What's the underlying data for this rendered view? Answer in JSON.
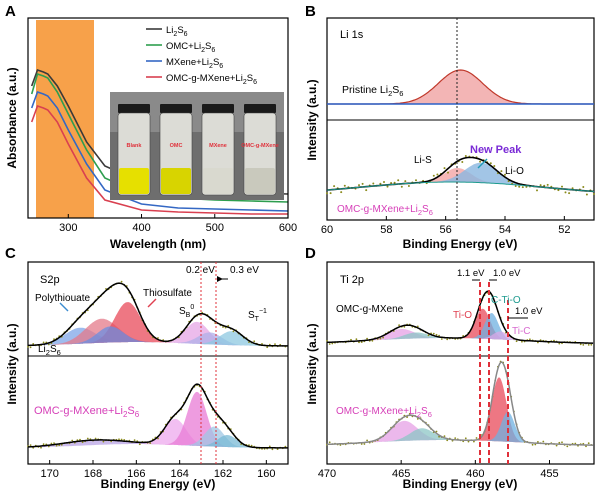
{
  "chart_data": [
    {
      "panel": "A",
      "type": "line",
      "xlabel": "Wavelength (nm)",
      "ylabel": "Absorbance (a.u.)",
      "xticks": [
        "300",
        "400",
        "500",
        "600"
      ],
      "xlim": [
        245,
        600
      ],
      "highlight_band_nm": [
        250,
        325
      ],
      "series": [
        {
          "name": "Li2S6",
          "color": "#3a3a3a",
          "x": [
            250,
            258,
            266,
            272,
            285,
            300,
            325,
            350,
            400,
            450,
            500,
            550,
            600
          ],
          "y": [
            0.66,
            0.74,
            0.73,
            0.72,
            0.66,
            0.56,
            0.38,
            0.26,
            0.18,
            0.15,
            0.135,
            0.125,
            0.12
          ]
        },
        {
          "name": "OMC+Li2S6",
          "color": "#2e9e4f",
          "x": [
            250,
            258,
            266,
            272,
            285,
            300,
            325,
            350,
            400,
            450,
            500,
            550,
            600
          ],
          "y": [
            0.62,
            0.72,
            0.71,
            0.7,
            0.63,
            0.52,
            0.34,
            0.2,
            0.12,
            0.1,
            0.09,
            0.085,
            0.08
          ]
        },
        {
          "name": "MXene+Li2S6",
          "color": "#3468c4",
          "x": [
            250,
            258,
            266,
            272,
            285,
            300,
            325,
            350,
            400,
            450,
            500,
            550,
            600
          ],
          "y": [
            0.55,
            0.63,
            0.62,
            0.61,
            0.55,
            0.44,
            0.27,
            0.14,
            0.07,
            0.05,
            0.045,
            0.04,
            0.035
          ]
        },
        {
          "name": "OMC-g-MXene+Li2S6",
          "color": "#d94050",
          "x": [
            250,
            258,
            266,
            272,
            285,
            300,
            325,
            350,
            400,
            450,
            500,
            550,
            600
          ],
          "y": [
            0.48,
            0.56,
            0.55,
            0.54,
            0.48,
            0.37,
            0.2,
            0.09,
            0.04,
            0.03,
            0.025,
            0.02,
            0.02
          ]
        }
      ],
      "legend": [
        "Li2S6",
        "OMC+Li2S6",
        "MXene+Li2S6",
        "OMC-g-MXene+Li2S6"
      ],
      "vial_labels": [
        "Blank",
        "OMC",
        "MXene",
        "OMC-g-MXene"
      ]
    },
    {
      "panel": "B",
      "type": "line",
      "panel_title": "Li 1s",
      "xlabel": "Binding Energy (eV)",
      "ylabel": "Intensity (a.u.)",
      "xticks": [
        "60",
        "58",
        "56",
        "54",
        "52"
      ],
      "xlim": [
        60,
        51
      ],
      "reference_line_eV": 55.5,
      "upper_label": "Pristine Li2S6",
      "lower_label": "OMC-g-MXene+Li2S6",
      "annotations": [
        "Li-S",
        "New Peak",
        "Li-O"
      ],
      "upper_peak": {
        "center": 55.5,
        "label": "Pristine Li2S6"
      },
      "lower_components": [
        {
          "name": "Li-S",
          "center": 55.5
        },
        {
          "name": "Li-O",
          "center": 54.8
        }
      ]
    },
    {
      "panel": "C",
      "type": "line",
      "panel_title": "S2p",
      "xlabel": "Binding Energy (eV)",
      "ylabel": "Intensity (a.u.)",
      "xticks": [
        "170",
        "168",
        "166",
        "164",
        "162",
        "160"
      ],
      "xlim": [
        171,
        159
      ],
      "shift_labels": [
        "0.2 eV",
        "0.3 eV"
      ],
      "annotations": [
        "Polythiouate",
        "Thiosulfate",
        "SB0",
        "ST-1"
      ],
      "upper_label": "Li2S6",
      "lower_label": "OMC-g-MXene+Li2S6",
      "reference_lines_eV": [
        162.9,
        162.5
      ]
    },
    {
      "panel": "D",
      "type": "line",
      "panel_title": "Ti 2p",
      "xlabel": "Binding Energy (eV)",
      "ylabel": "Intensity (a.u.)",
      "xticks": [
        "470",
        "465",
        "460",
        "455"
      ],
      "xlim": [
        470,
        452
      ],
      "shift_labels": [
        "1.1 eV",
        "1.0 eV",
        "1.0 eV"
      ],
      "annotations": [
        "Ti-O",
        "C-Ti-O",
        "Ti-C"
      ],
      "upper_label": "OMC-g-MXene",
      "lower_label": "OMC-g-MXene+Li2S6",
      "reference_lines_eV": [
        459.5,
        459.0,
        457.8
      ]
    }
  ],
  "panel_letters": [
    "A",
    "B",
    "C",
    "D"
  ]
}
